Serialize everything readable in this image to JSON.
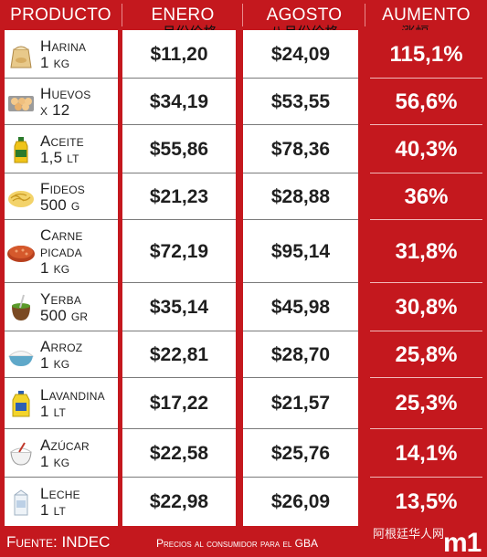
{
  "header": {
    "producto": "PRODUCTO",
    "enero": "ENERO",
    "agosto": "AGOSTO",
    "aumento": "AUMENTO",
    "enero_cn": "一月份价格",
    "agosto_cn": "八月份价格",
    "aumento_cn": "涨幅"
  },
  "chart_data": {
    "type": "table",
    "columns": [
      "PRODUCTO",
      "ENERO",
      "AGOSTO",
      "AUMENTO"
    ],
    "rows": [
      {
        "icon": "flour-bag-icon",
        "name": [
          "Harina",
          "1 kg"
        ],
        "enero": "$11,20",
        "agosto": "$24,09",
        "aumento": "115,1%"
      },
      {
        "icon": "egg-carton-icon",
        "name": [
          "Huevos",
          "x 12"
        ],
        "enero": "$34,19",
        "agosto": "$53,55",
        "aumento": "56,6%"
      },
      {
        "icon": "oil-bottle-icon",
        "name": [
          "Aceite",
          "1,5 lt"
        ],
        "enero": "$55,86",
        "agosto": "$78,36",
        "aumento": "40,3%"
      },
      {
        "icon": "pasta-bowl-icon",
        "name": [
          "Fideos",
          "500 g"
        ],
        "enero": "$21,23",
        "agosto": "$28,88",
        "aumento": "36%"
      },
      {
        "icon": "ground-meat-icon",
        "name": [
          "Carne",
          "picada",
          "1 kg"
        ],
        "enero": "$72,19",
        "agosto": "$95,14",
        "aumento": "31,8%"
      },
      {
        "icon": "mate-gourd-icon",
        "name": [
          "Yerba",
          "500 gr"
        ],
        "enero": "$35,14",
        "agosto": "$45,98",
        "aumento": "30,8%"
      },
      {
        "icon": "rice-bowl-icon",
        "name": [
          "Arroz",
          "1 kg"
        ],
        "enero": "$22,81",
        "agosto": "$28,70",
        "aumento": "25,8%"
      },
      {
        "icon": "bleach-bottle-icon",
        "name": [
          "Lavandina",
          "1 lt"
        ],
        "enero": "$17,22",
        "agosto": "$21,57",
        "aumento": "25,3%"
      },
      {
        "icon": "sugar-bowl-icon",
        "name": [
          "Azúcar",
          "1 kg"
        ],
        "enero": "$22,58",
        "agosto": "$25,76",
        "aumento": "14,1%"
      },
      {
        "icon": "milk-carton-icon",
        "name": [
          "Leche",
          "1 lt"
        ],
        "enero": "$22,98",
        "agosto": "$26,09",
        "aumento": "13,5%"
      }
    ]
  },
  "footer": {
    "source": "Fuente: INDEC",
    "note": "Precios al consumidor para el GBA",
    "watermark": "阿根廷华人网",
    "logo": "m1"
  },
  "colors": {
    "red": "#c4181e",
    "text": "#1f1f1f",
    "white": "#ffffff"
  }
}
